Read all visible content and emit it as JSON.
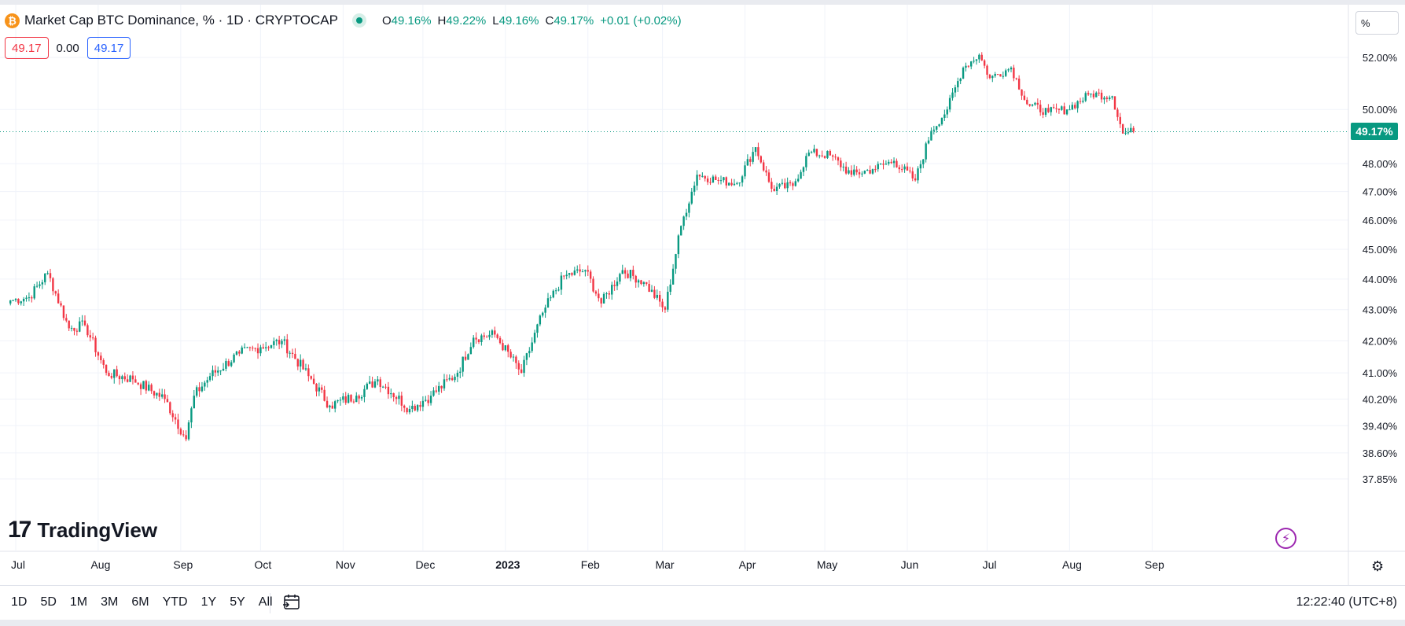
{
  "header": {
    "symbol_icon": "bitcoin-icon",
    "title": "Market Cap BTC Dominance, % · 1D · CRYPTOCAP",
    "ohlc": {
      "o_label": "O",
      "o": "49.16%",
      "h_label": "H",
      "h": "49.22%",
      "l_label": "L",
      "l": "49.16%",
      "c_label": "C",
      "c": "49.17%",
      "change": "+0.01 (+0.02%)"
    }
  },
  "badges": {
    "sell": "49.17",
    "spread": "0.00",
    "buy": "49.17"
  },
  "scale_button": "%",
  "last_price_label": "49.17%",
  "watermark": {
    "logo": "17",
    "text": "TradingView"
  },
  "bottom_bar": {
    "periods": [
      "1D",
      "5D",
      "1M",
      "3M",
      "6M",
      "YTD",
      "1Y",
      "5Y",
      "All"
    ],
    "clock": "12:22:40 (UTC+8)"
  },
  "colors": {
    "up": "#089981",
    "down": "#f23645",
    "grid": "#f0f3fa",
    "text": "#131722"
  },
  "icons": [
    "bitcoin-icon",
    "live-dot-icon",
    "lightning-icon",
    "gear-icon",
    "date-range-icon"
  ],
  "chart_data": {
    "type": "candlestick",
    "title": "Market Cap BTC Dominance, % · 1D · CRYPTOCAP",
    "scale": "log",
    "y_ticks": [
      52.0,
      50.0,
      48.0,
      47.0,
      46.0,
      45.0,
      44.0,
      43.0,
      42.0,
      41.0,
      40.2,
      39.4,
      38.6,
      37.85
    ],
    "y_tick_labels": [
      "52.00%",
      "50.00%",
      "48.00%",
      "47.00%",
      "46.00%",
      "45.00%",
      "44.00%",
      "43.00%",
      "42.00%",
      "41.00%",
      "40.20%",
      "39.40%",
      "38.60%",
      "37.85%"
    ],
    "x_tick_labels": [
      "Jul",
      "Aug",
      "Sep",
      "Oct",
      "Nov",
      "Dec",
      "2023",
      "Feb",
      "Mar",
      "Apr",
      "May",
      "Jun",
      "Jul",
      "Aug",
      "Sep"
    ],
    "x_tick_days": [
      0,
      31,
      62,
      92,
      123,
      153,
      184,
      215,
      243,
      274,
      304,
      335,
      365,
      396,
      427
    ],
    "last_price": 49.17,
    "close_anchors": [
      {
        "day": -2,
        "close": 43.3
      },
      {
        "day": 5,
        "close": 43.4
      },
      {
        "day": 12,
        "close": 44.2
      },
      {
        "day": 20,
        "close": 42.4
      },
      {
        "day": 26,
        "close": 42.5
      },
      {
        "day": 34,
        "close": 41.0
      },
      {
        "day": 44,
        "close": 40.8
      },
      {
        "day": 56,
        "close": 40.2
      },
      {
        "day": 64,
        "close": 39.0
      },
      {
        "day": 67,
        "close": 40.3
      },
      {
        "day": 73,
        "close": 40.9
      },
      {
        "day": 84,
        "close": 41.6
      },
      {
        "day": 92,
        "close": 41.8
      },
      {
        "day": 100,
        "close": 42.0
      },
      {
        "day": 110,
        "close": 40.9
      },
      {
        "day": 118,
        "close": 40.0
      },
      {
        "day": 128,
        "close": 40.3
      },
      {
        "day": 136,
        "close": 40.8
      },
      {
        "day": 148,
        "close": 39.9
      },
      {
        "day": 156,
        "close": 40.3
      },
      {
        "day": 166,
        "close": 41.0
      },
      {
        "day": 172,
        "close": 42.1
      },
      {
        "day": 180,
        "close": 42.2
      },
      {
        "day": 190,
        "close": 41.0
      },
      {
        "day": 198,
        "close": 42.9
      },
      {
        "day": 206,
        "close": 44.1
      },
      {
        "day": 214,
        "close": 44.3
      },
      {
        "day": 220,
        "close": 43.2
      },
      {
        "day": 228,
        "close": 44.3
      },
      {
        "day": 236,
        "close": 43.9
      },
      {
        "day": 244,
        "close": 43.0
      },
      {
        "day": 250,
        "close": 45.8
      },
      {
        "day": 256,
        "close": 47.6
      },
      {
        "day": 264,
        "close": 47.4
      },
      {
        "day": 271,
        "close": 47.3
      },
      {
        "day": 278,
        "close": 48.6
      },
      {
        "day": 284,
        "close": 47.1
      },
      {
        "day": 292,
        "close": 47.2
      },
      {
        "day": 298,
        "close": 48.4
      },
      {
        "day": 306,
        "close": 48.3
      },
      {
        "day": 314,
        "close": 47.6
      },
      {
        "day": 322,
        "close": 47.8
      },
      {
        "day": 330,
        "close": 48.1
      },
      {
        "day": 338,
        "close": 47.4
      },
      {
        "day": 344,
        "close": 49.2
      },
      {
        "day": 350,
        "close": 50.0
      },
      {
        "day": 356,
        "close": 51.6
      },
      {
        "day": 362,
        "close": 52.1
      },
      {
        "day": 366,
        "close": 51.2
      },
      {
        "day": 374,
        "close": 51.6
      },
      {
        "day": 380,
        "close": 50.2
      },
      {
        "day": 388,
        "close": 49.9
      },
      {
        "day": 395,
        "close": 50.0
      },
      {
        "day": 404,
        "close": 50.6
      },
      {
        "day": 412,
        "close": 50.5
      },
      {
        "day": 416,
        "close": 49.1
      },
      {
        "day": 420,
        "close": 49.17
      }
    ]
  }
}
